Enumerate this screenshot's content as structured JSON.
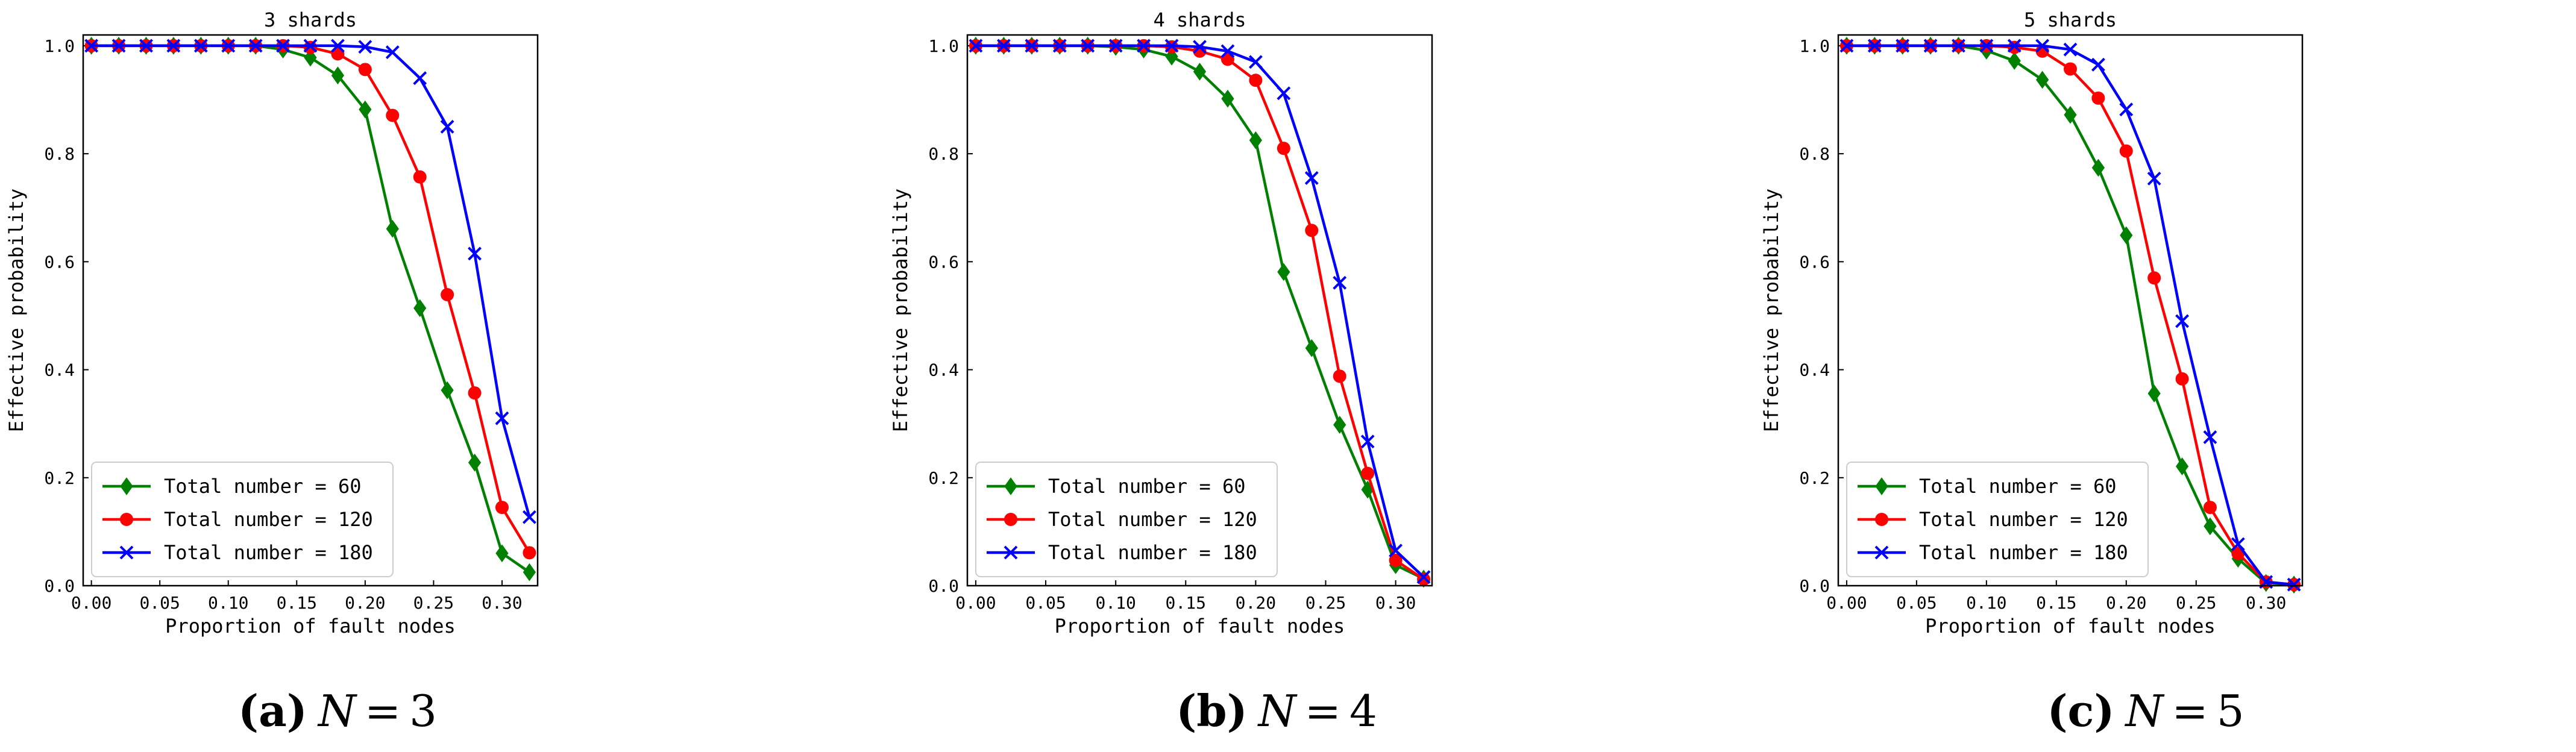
{
  "chart_data": [
    {
      "type": "line",
      "title": "3 shards",
      "xlabel": "Proportion of fault nodes",
      "ylabel": "Effective probability",
      "xlim": [
        -0.006,
        0.326
      ],
      "ylim": [
        0.0,
        1.02
      ],
      "xticks": [
        0.0,
        0.05,
        0.1,
        0.15,
        0.2,
        0.25,
        0.3
      ],
      "xtick_labels": [
        "0.00",
        "0.05",
        "0.10",
        "0.15",
        "0.20",
        "0.25",
        "0.30"
      ],
      "yticks": [
        0.0,
        0.2,
        0.4,
        0.6,
        0.8,
        1.0
      ],
      "ytick_labels": [
        "0.0",
        "0.2",
        "0.4",
        "0.6",
        "0.8",
        "1.0"
      ],
      "legend_position": "lower-left",
      "x": [
        0.0,
        0.02,
        0.04,
        0.06,
        0.08,
        0.1,
        0.12,
        0.14,
        0.16,
        0.18,
        0.2,
        0.22,
        0.24,
        0.26,
        0.28,
        0.3,
        0.32
      ],
      "series": [
        {
          "name": "Total number = 60",
          "color": "#008000",
          "marker": "diamond",
          "values": [
            1.0,
            1.0,
            1.0,
            1.0,
            1.0,
            1.0,
            1.0,
            0.993,
            0.978,
            0.945,
            0.882,
            0.661,
            0.514,
            0.362,
            0.228,
            0.06,
            0.025
          ]
        },
        {
          "name": "Total number = 120",
          "color": "#ff0000",
          "marker": "circle",
          "values": [
            1.0,
            1.0,
            1.0,
            1.0,
            1.0,
            1.0,
            1.0,
            1.0,
            0.997,
            0.985,
            0.956,
            0.871,
            0.757,
            0.539,
            0.357,
            0.145,
            0.061
          ]
        },
        {
          "name": "Total number = 180",
          "color": "#0000ff",
          "marker": "x",
          "values": [
            1.0,
            1.0,
            1.0,
            1.0,
            1.0,
            1.0,
            1.0,
            1.0,
            1.0,
            1.0,
            0.998,
            0.988,
            0.94,
            0.85,
            0.615,
            0.31,
            0.127
          ]
        }
      ]
    },
    {
      "type": "line",
      "title": "4 shards",
      "xlabel": "Proportion of fault nodes",
      "ylabel": "Effective probability",
      "xlim": [
        -0.006,
        0.326
      ],
      "ylim": [
        0.0,
        1.02
      ],
      "xticks": [
        0.0,
        0.05,
        0.1,
        0.15,
        0.2,
        0.25,
        0.3
      ],
      "xtick_labels": [
        "0.00",
        "0.05",
        "0.10",
        "0.15",
        "0.20",
        "0.25",
        "0.30"
      ],
      "yticks": [
        0.0,
        0.2,
        0.4,
        0.6,
        0.8,
        1.0
      ],
      "ytick_labels": [
        "0.0",
        "0.2",
        "0.4",
        "0.6",
        "0.8",
        "1.0"
      ],
      "legend_position": "lower-left",
      "x": [
        0.0,
        0.02,
        0.04,
        0.06,
        0.08,
        0.1,
        0.12,
        0.14,
        0.16,
        0.18,
        0.2,
        0.22,
        0.24,
        0.26,
        0.28,
        0.3,
        0.32
      ],
      "series": [
        {
          "name": "Total number = 60",
          "color": "#008000",
          "marker": "diamond",
          "values": [
            1.0,
            1.0,
            1.0,
            1.0,
            1.0,
            0.998,
            0.993,
            0.98,
            0.952,
            0.902,
            0.825,
            0.581,
            0.44,
            0.298,
            0.178,
            0.038,
            0.013
          ]
        },
        {
          "name": "Total number = 120",
          "color": "#ff0000",
          "marker": "circle",
          "values": [
            1.0,
            1.0,
            1.0,
            1.0,
            1.0,
            1.0,
            1.0,
            0.998,
            0.99,
            0.975,
            0.936,
            0.81,
            0.658,
            0.388,
            0.208,
            0.047,
            0.012
          ]
        },
        {
          "name": "Total number = 180",
          "color": "#0000ff",
          "marker": "x",
          "values": [
            1.0,
            1.0,
            1.0,
            1.0,
            1.0,
            1.0,
            1.0,
            1.0,
            0.998,
            0.99,
            0.97,
            0.912,
            0.755,
            0.561,
            0.267,
            0.065,
            0.016
          ]
        }
      ]
    },
    {
      "type": "line",
      "title": "5 shards",
      "xlabel": "Proportion of fault nodes",
      "ylabel": "Effective probability",
      "xlim": [
        -0.006,
        0.326
      ],
      "ylim": [
        0.0,
        1.02
      ],
      "xticks": [
        0.0,
        0.05,
        0.1,
        0.15,
        0.2,
        0.25,
        0.3
      ],
      "xtick_labels": [
        "0.00",
        "0.05",
        "0.10",
        "0.15",
        "0.20",
        "0.25",
        "0.30"
      ],
      "yticks": [
        0.0,
        0.2,
        0.4,
        0.6,
        0.8,
        1.0
      ],
      "ytick_labels": [
        "0.0",
        "0.2",
        "0.4",
        "0.6",
        "0.8",
        "1.0"
      ],
      "legend_position": "lower-left",
      "x": [
        0.0,
        0.02,
        0.04,
        0.06,
        0.08,
        0.1,
        0.12,
        0.14,
        0.16,
        0.18,
        0.2,
        0.22,
        0.24,
        0.26,
        0.28,
        0.3,
        0.32
      ],
      "series": [
        {
          "name": "Total number = 60",
          "color": "#008000",
          "marker": "diamond",
          "values": [
            1.0,
            1.0,
            1.0,
            1.0,
            1.0,
            0.991,
            0.972,
            0.937,
            0.872,
            0.774,
            0.649,
            0.356,
            0.221,
            0.11,
            0.05,
            0.005,
            0.002
          ]
        },
        {
          "name": "Total number = 120",
          "color": "#ff0000",
          "marker": "circle",
          "values": [
            1.0,
            1.0,
            1.0,
            1.0,
            1.0,
            1.0,
            0.997,
            0.99,
            0.957,
            0.903,
            0.805,
            0.57,
            0.383,
            0.145,
            0.06,
            0.007,
            0.002
          ]
        },
        {
          "name": "Total number = 180",
          "color": "#0000ff",
          "marker": "x",
          "values": [
            1.0,
            1.0,
            1.0,
            1.0,
            1.0,
            1.0,
            1.0,
            1.0,
            0.993,
            0.965,
            0.882,
            0.754,
            0.49,
            0.275,
            0.077,
            0.007,
            0.002
          ]
        }
      ]
    }
  ],
  "captions": [
    {
      "letter": "(a)",
      "variable": "N",
      "equals": "=",
      "value": "3"
    },
    {
      "letter": "(b)",
      "variable": "N",
      "equals": "=",
      "value": "4"
    },
    {
      "letter": "(c)",
      "variable": "N",
      "equals": "=",
      "value": "5"
    }
  ]
}
